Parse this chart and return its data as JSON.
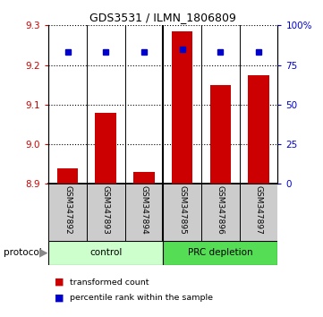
{
  "title": "GDS3531 / ILMN_1806809",
  "samples": [
    "GSM347892",
    "GSM347893",
    "GSM347894",
    "GSM347895",
    "GSM347896",
    "GSM347897"
  ],
  "bar_values": [
    8.94,
    9.08,
    8.93,
    9.285,
    9.15,
    9.175
  ],
  "percentile_values": [
    83,
    83,
    83,
    85,
    83,
    83
  ],
  "bar_baseline": 8.9,
  "ylim_left": [
    8.9,
    9.3
  ],
  "ylim_right": [
    0,
    100
  ],
  "yticks_left": [
    8.9,
    9.0,
    9.1,
    9.2,
    9.3
  ],
  "yticks_right": [
    0,
    25,
    50,
    75,
    100
  ],
  "control_color": "#ccffcc",
  "prc_color": "#55dd55",
  "bar_color": "#cc0000",
  "percentile_color": "#0000cc",
  "bar_width": 0.55,
  "tick_label_color_left": "#cc0000",
  "tick_label_color_right": "#0000cc",
  "legend_bar_label": "transformed count",
  "legend_dot_label": "percentile rank within the sample",
  "protocol_label": "protocol"
}
